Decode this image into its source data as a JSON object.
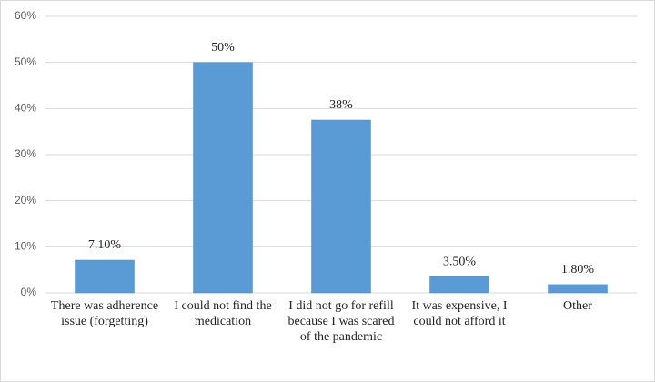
{
  "chart_data": {
    "type": "bar",
    "categories": [
      "There was adherence issue (forgetting)",
      "I could not find the medication",
      "I did not go for refill because I was scared of the pandemic",
      "It was expensive, I could not afford it",
      "Other"
    ],
    "values": [
      7.1,
      50,
      37.5,
      3.5,
      1.8
    ],
    "value_labels": [
      "7.10%",
      "50%",
      "38%",
      "3.50%",
      "1.80%"
    ],
    "color": "#5b9bd5",
    "ylim": [
      0,
      60
    ],
    "yticks": [
      {
        "value": 0,
        "label": "0%"
      },
      {
        "value": 10,
        "label": "10%"
      },
      {
        "value": 20,
        "label": "20%"
      },
      {
        "value": 30,
        "label": "30%"
      },
      {
        "value": 40,
        "label": "40%"
      },
      {
        "value": 50,
        "label": "50%"
      },
      {
        "value": 60,
        "label": "60%"
      }
    ],
    "grid": true
  }
}
